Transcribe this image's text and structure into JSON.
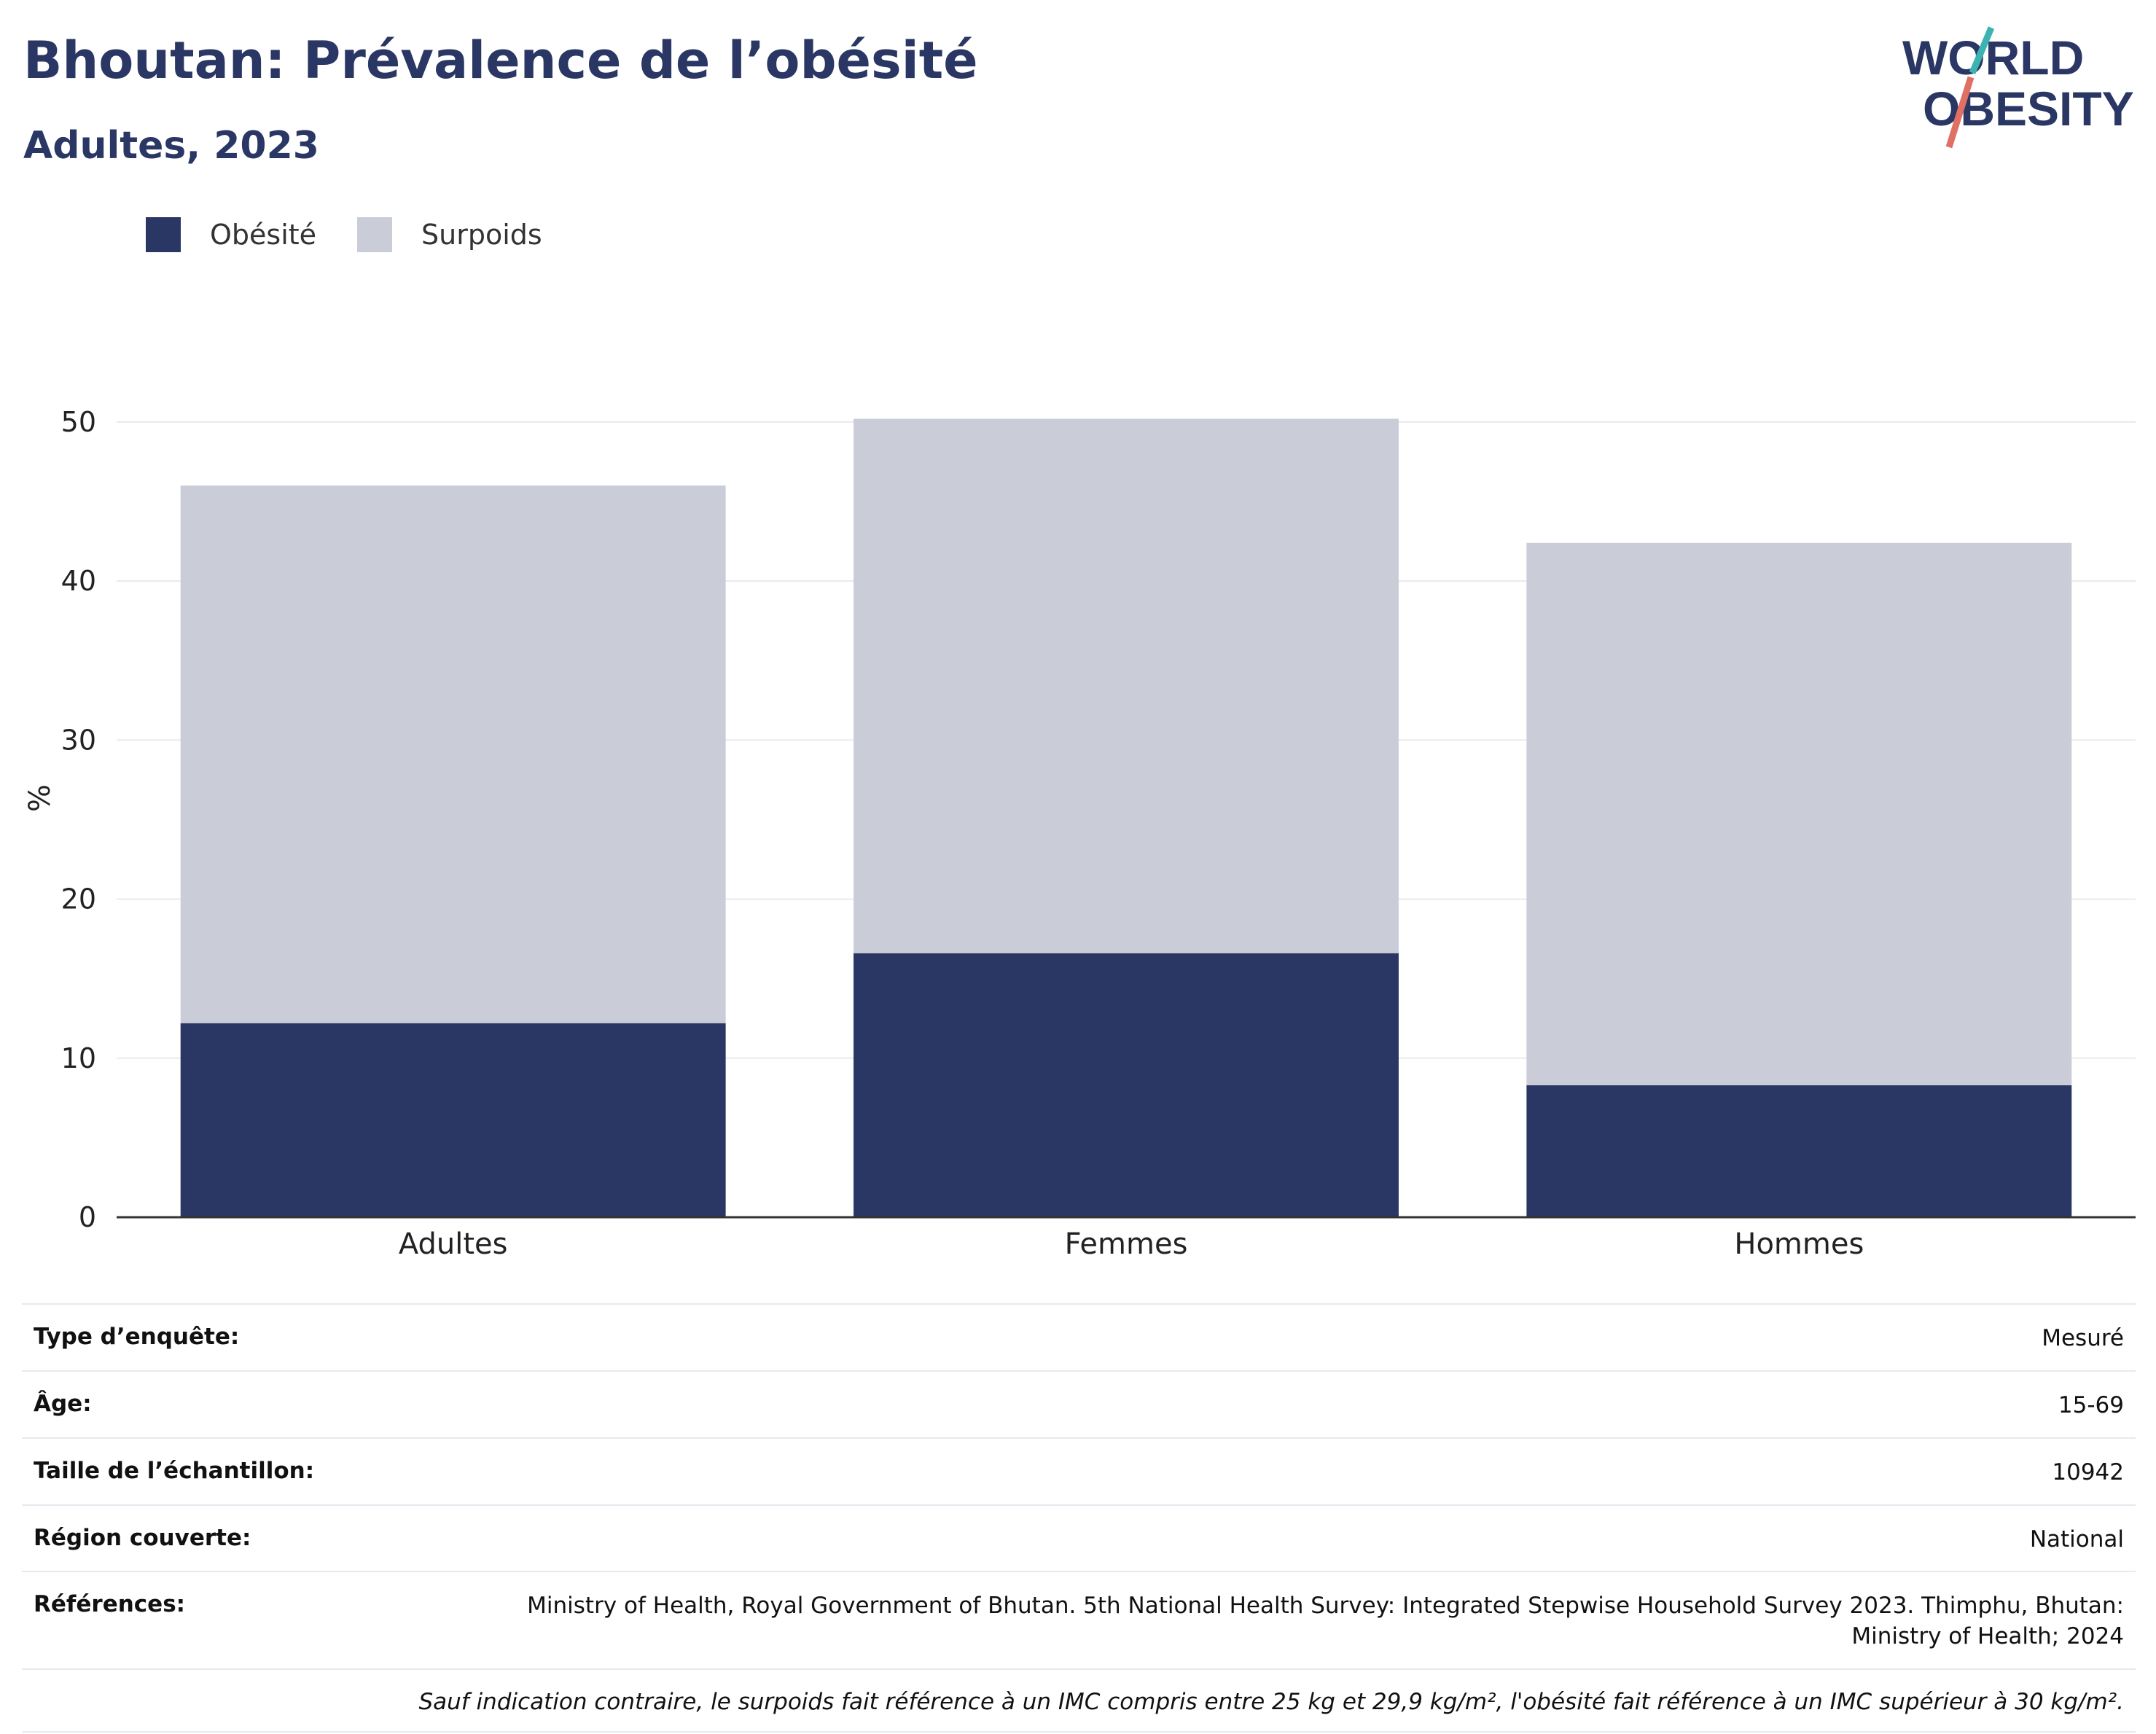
{
  "header": {
    "title": "Bhoutan: Prévalence de l’obésité",
    "subtitle": "Adultes, 2023"
  },
  "logo": {
    "line1": "WORLD",
    "line2": "OBESITY"
  },
  "colors": {
    "obesity": "#2a3663",
    "overweight": "#cacdd8",
    "text": "#2a3663",
    "logo_teal": "#3bb3b0",
    "logo_coral": "#e07063"
  },
  "legend": [
    {
      "label": "Obésité",
      "color": "#2a3663"
    },
    {
      "label": "Surpoids",
      "color": "#cacdd8"
    }
  ],
  "chart_data": {
    "type": "bar",
    "stacked": true,
    "categories": [
      "Adultes",
      "Femmes",
      "Hommes"
    ],
    "series": [
      {
        "name": "Obésité",
        "values": [
          12.2,
          16.6,
          8.3
        ]
      },
      {
        "name": "Surpoids",
        "values": [
          33.8,
          33.6,
          34.1
        ]
      }
    ],
    "ylabel": "%",
    "ylim": [
      0,
      52.7
    ],
    "yticks": [
      0,
      10,
      20,
      30,
      40,
      50
    ],
    "grid": true,
    "legend_position": "top-left"
  },
  "info": {
    "rows": [
      {
        "key": "Type d’enquête:",
        "value": "Mesuré"
      },
      {
        "key": "Âge:",
        "value": "15-69"
      },
      {
        "key": "Taille de l’échantillon:",
        "value": "10942"
      },
      {
        "key": "Région couverte:",
        "value": "National"
      },
      {
        "key": "Références:",
        "value": "Ministry of Health, Royal Government of Bhutan. 5th National Health Survey: Integrated Stepwise Household Survey 2023. Thimphu, Bhutan: Ministry of Health; 2024"
      }
    ],
    "note": "Sauf indication contraire, le surpoids fait référence à un IMC compris entre 25 kg et 29,9 kg/m², l'obésité fait référence à un IMC supérieur à 30 kg/m²."
  }
}
